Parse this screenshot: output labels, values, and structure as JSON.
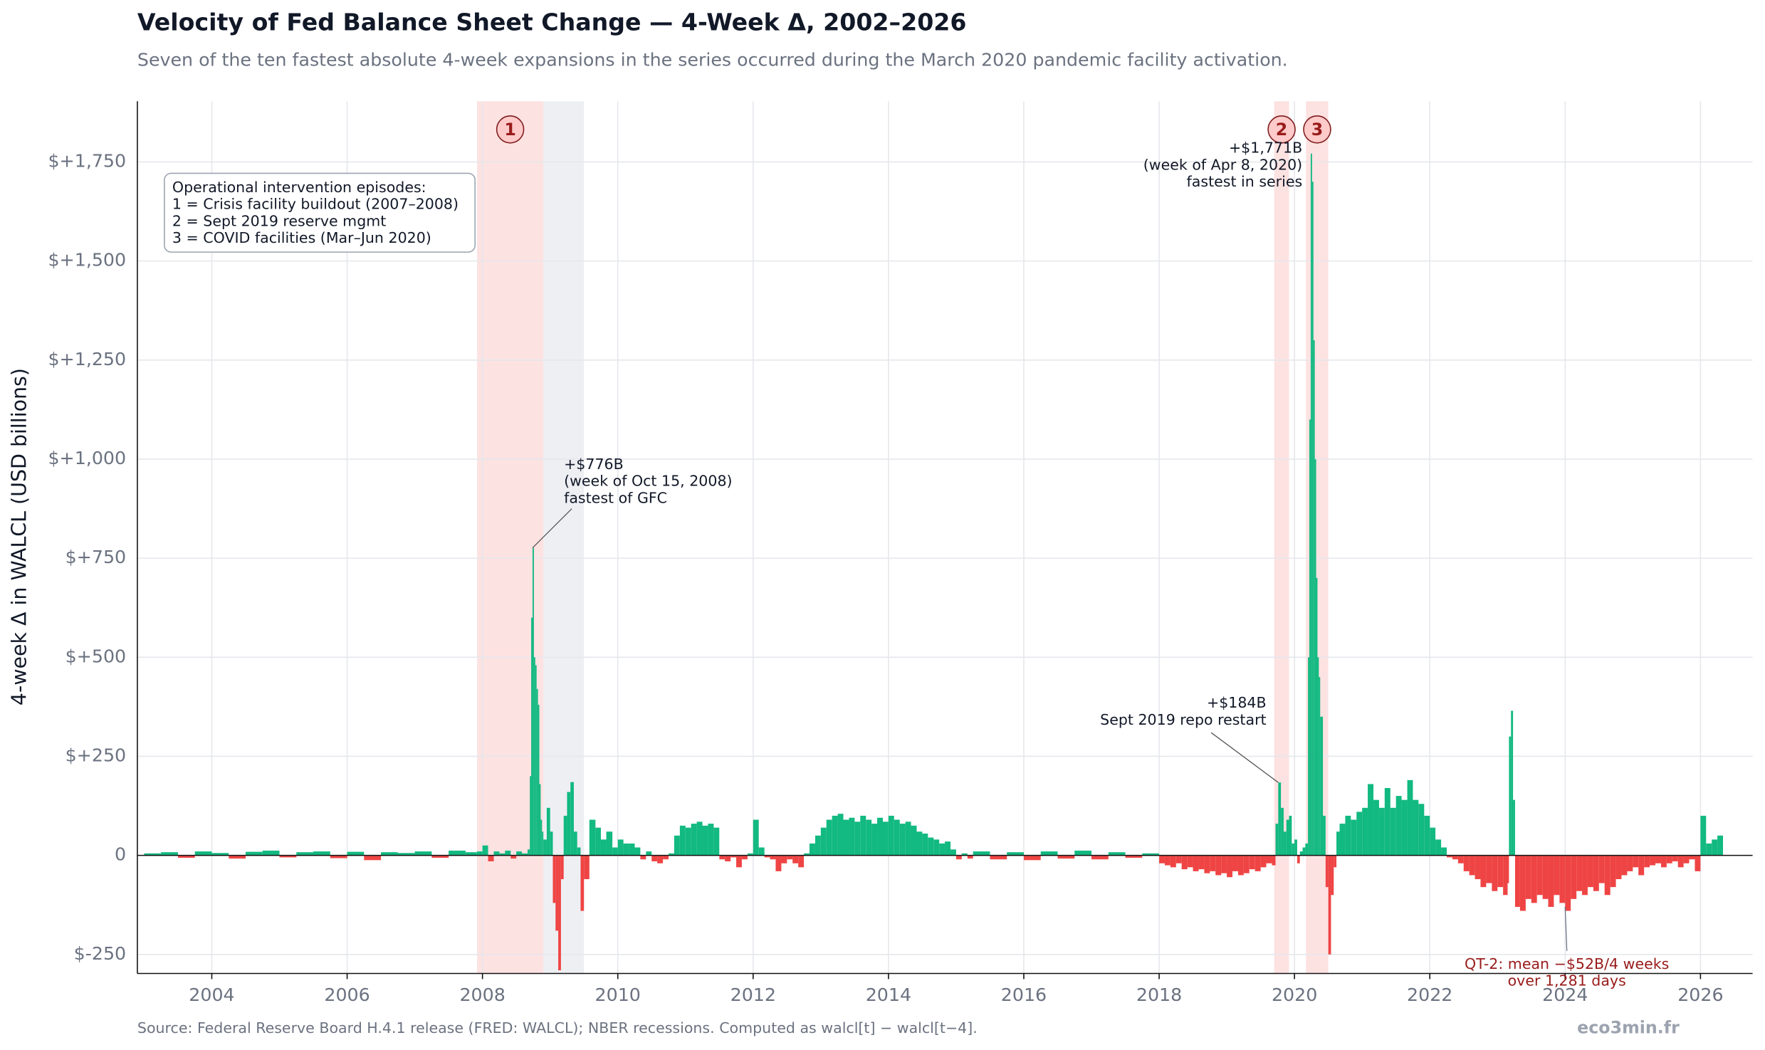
{
  "chart_data": {
    "type": "bar",
    "title": "Velocity of Fed Balance Sheet Change — 4-Week Δ, 2002–2026",
    "subtitle": "Seven of the ten fastest absolute 4-week expansions in the series occurred during the March 2020 pandemic facility activation.",
    "y_label": "4-week Δ in WALCL (USD billions)",
    "source": "Source: Federal Reserve Board H.4.1 release (FRED: WALCL); NBER recessions.   Computed as walcl[t] − walcl[t−4].",
    "brand": "eco3min.fr",
    "xlim": [
      2002.9,
      2026.77
    ],
    "xticks": [
      2004,
      2006,
      2008,
      2010,
      2012,
      2014,
      2016,
      2018,
      2020,
      2022,
      2024,
      2026
    ],
    "ylim": [
      -298,
      1903
    ],
    "yticks": [
      {
        "value": -250,
        "label": "$-250"
      },
      0,
      {
        "value": 250,
        "label": "$+250"
      },
      {
        "value": 500,
        "label": "$+500"
      },
      {
        "value": 750,
        "label": "$+750"
      },
      {
        "value": 1000,
        "label": "$+1,000"
      },
      {
        "value": 1250,
        "label": "$+1,250"
      },
      {
        "value": 1500,
        "label": "$+1,500"
      },
      {
        "value": 1750,
        "label": "$+1,750"
      }
    ],
    "grid": true,
    "pos_color": "#12b981",
    "neg_color": "#ef4444",
    "episodes": [
      {
        "label": "1",
        "start": 2007.92,
        "end": 2008.9
      },
      {
        "label": "2",
        "start": 2019.7,
        "end": 2019.92
      },
      {
        "label": "3",
        "start": 2020.17,
        "end": 2020.5
      }
    ],
    "episode_color": "#fde2e2",
    "recessions": [
      {
        "start": 2008.9,
        "end": 2009.5
      }
    ],
    "recession_color": "#eeeff3",
    "legend_lines": [
      "Operational intervention episodes:",
      "1 = Crisis facility buildout (2007–2008)",
      "2 = Sept 2019 reserve mgmt",
      "3 = COVID facilities (Mar–Jun 2020)"
    ],
    "annotations": [
      {
        "x": 2008.74,
        "y": 776,
        "lines": [
          "+$776B",
          "(week of Oct 15, 2008)",
          "fastest of GFC"
        ],
        "color": "#111827"
      },
      {
        "x": 2020.24,
        "y": 1771,
        "lines": [
          "+$1,771B",
          "(week of Apr 8, 2020)",
          "fastest in series"
        ],
        "color": "#111827"
      },
      {
        "x": 2019.76,
        "y": 184,
        "lines": [
          "+$184B",
          "Sept 2019 repo restart"
        ],
        "color": "#111827"
      },
      {
        "x": 2024.0,
        "y": -130,
        "lines": [
          "QT-2: mean −$52B/4 weeks",
          "over 1,281 days"
        ],
        "color": "#991b1b"
      }
    ],
    "x": [
      2003.0,
      2003.25,
      2003.5,
      2003.75,
      2004.0,
      2004.25,
      2004.5,
      2004.75,
      2005.0,
      2005.25,
      2005.5,
      2005.75,
      2006.0,
      2006.25,
      2006.5,
      2006.75,
      2007.0,
      2007.25,
      2007.5,
      2007.75,
      2007.917,
      2008.0,
      2008.083,
      2008.167,
      2008.25,
      2008.333,
      2008.417,
      2008.5,
      2008.583,
      2008.667,
      2008.7,
      2008.72,
      2008.74,
      2008.76,
      2008.78,
      2008.8,
      2008.82,
      2008.84,
      2008.86,
      2008.88,
      2008.9,
      2008.95,
      2009.0,
      2009.04,
      2009.08,
      2009.12,
      2009.16,
      2009.2,
      2009.25,
      2009.3,
      2009.35,
      2009.4,
      2009.45,
      2009.5,
      2009.58,
      2009.67,
      2009.75,
      2009.83,
      2009.92,
      2010.0,
      2010.083,
      2010.167,
      2010.25,
      2010.333,
      2010.417,
      2010.5,
      2010.583,
      2010.667,
      2010.75,
      2010.833,
      2010.917,
      2011.0,
      2011.083,
      2011.167,
      2011.25,
      2011.333,
      2011.417,
      2011.5,
      2011.583,
      2011.667,
      2011.75,
      2011.833,
      2011.917,
      2012.0,
      2012.083,
      2012.167,
      2012.25,
      2012.333,
      2012.417,
      2012.5,
      2012.583,
      2012.667,
      2012.75,
      2012.833,
      2012.917,
      2013.0,
      2013.083,
      2013.167,
      2013.25,
      2013.333,
      2013.417,
      2013.5,
      2013.583,
      2013.667,
      2013.75,
      2013.833,
      2013.917,
      2014.0,
      2014.083,
      2014.167,
      2014.25,
      2014.333,
      2014.417,
      2014.5,
      2014.583,
      2014.667,
      2014.75,
      2014.833,
      2014.917,
      2015.0,
      2015.083,
      2015.167,
      2015.25,
      2015.5,
      2015.75,
      2016.0,
      2016.25,
      2016.5,
      2016.75,
      2017.0,
      2017.25,
      2017.5,
      2017.75,
      2018.0,
      2018.083,
      2018.167,
      2018.25,
      2018.333,
      2018.417,
      2018.5,
      2018.583,
      2018.667,
      2018.75,
      2018.833,
      2018.917,
      2019.0,
      2019.083,
      2019.167,
      2019.25,
      2019.333,
      2019.417,
      2019.5,
      2019.583,
      2019.667,
      2019.72,
      2019.76,
      2019.8,
      2019.84,
      2019.88,
      2019.92,
      2019.96,
      2020.0,
      2020.04,
      2020.08,
      2020.12,
      2020.16,
      2020.2,
      2020.22,
      2020.24,
      2020.26,
      2020.28,
      2020.3,
      2020.32,
      2020.34,
      2020.36,
      2020.38,
      2020.42,
      2020.46,
      2020.5,
      2020.54,
      2020.58,
      2020.62,
      2020.667,
      2020.75,
      2020.833,
      2020.917,
      2021.0,
      2021.083,
      2021.167,
      2021.25,
      2021.333,
      2021.417,
      2021.5,
      2021.583,
      2021.667,
      2021.75,
      2021.833,
      2021.917,
      2022.0,
      2022.083,
      2022.167,
      2022.25,
      2022.333,
      2022.417,
      2022.5,
      2022.583,
      2022.667,
      2022.75,
      2022.833,
      2022.917,
      2023.0,
      2023.083,
      2023.15,
      2023.17,
      2023.2,
      2023.23,
      2023.26,
      2023.333,
      2023.417,
      2023.5,
      2023.583,
      2023.667,
      2023.75,
      2023.833,
      2023.917,
      2024.0,
      2024.083,
      2024.167,
      2024.25,
      2024.333,
      2024.417,
      2024.5,
      2024.583,
      2024.667,
      2024.75,
      2024.833,
      2024.917,
      2025.0,
      2025.083,
      2025.167,
      2025.25,
      2025.333,
      2025.417,
      2025.5,
      2025.583,
      2025.667,
      2025.75,
      2025.833,
      2025.917,
      2026.0,
      2026.083,
      2026.167,
      2026.25
    ],
    "values": [
      5,
      8,
      -6,
      10,
      6,
      -8,
      9,
      12,
      -5,
      8,
      10,
      -7,
      9,
      -12,
      8,
      6,
      10,
      -6,
      12,
      8,
      10,
      25,
      -15,
      10,
      5,
      12,
      -8,
      10,
      5,
      15,
      200,
      600,
      776,
      500,
      480,
      420,
      380,
      180,
      90,
      60,
      40,
      120,
      60,
      -120,
      -190,
      -290,
      -60,
      100,
      160,
      185,
      60,
      20,
      -140,
      -60,
      90,
      70,
      40,
      60,
      20,
      40,
      30,
      30,
      20,
      -10,
      10,
      -15,
      -20,
      -10,
      5,
      50,
      75,
      70,
      80,
      85,
      75,
      80,
      70,
      -10,
      -15,
      -5,
      -30,
      -10,
      5,
      90,
      20,
      -5,
      -10,
      -40,
      -20,
      -10,
      -20,
      -30,
      5,
      30,
      50,
      70,
      90,
      100,
      105,
      90,
      95,
      85,
      100,
      90,
      80,
      95,
      85,
      100,
      90,
      80,
      85,
      75,
      60,
      55,
      45,
      40,
      30,
      35,
      15,
      -10,
      5,
      -8,
      10,
      -10,
      8,
      -12,
      10,
      -8,
      12,
      -10,
      8,
      -6,
      5,
      -20,
      -25,
      -30,
      -20,
      -35,
      -30,
      -40,
      -35,
      -45,
      -40,
      -50,
      -45,
      -55,
      -40,
      -50,
      -45,
      -35,
      -40,
      -30,
      -20,
      -25,
      80,
      184,
      120,
      60,
      90,
      100,
      30,
      40,
      -20,
      10,
      20,
      30,
      500,
      1100,
      1771,
      1700,
      1300,
      1000,
      700,
      500,
      450,
      350,
      100,
      -80,
      -250,
      -100,
      -30,
      60,
      80,
      100,
      90,
      110,
      120,
      180,
      140,
      120,
      170,
      120,
      150,
      140,
      190,
      140,
      130,
      100,
      70,
      40,
      20,
      -5,
      -10,
      -20,
      -40,
      -50,
      -60,
      -80,
      -70,
      -90,
      -80,
      -100,
      -70,
      300,
      365,
      140,
      -130,
      -140,
      -110,
      -120,
      -100,
      -110,
      -130,
      -100,
      -120,
      -140,
      -110,
      -90,
      -100,
      -80,
      -90,
      -70,
      -100,
      -80,
      -60,
      -50,
      -40,
      -30,
      -50,
      -30,
      -25,
      -20,
      -30,
      -20,
      -15,
      -30,
      -20,
      -10,
      -40,
      100,
      30,
      40,
      50
    ]
  }
}
